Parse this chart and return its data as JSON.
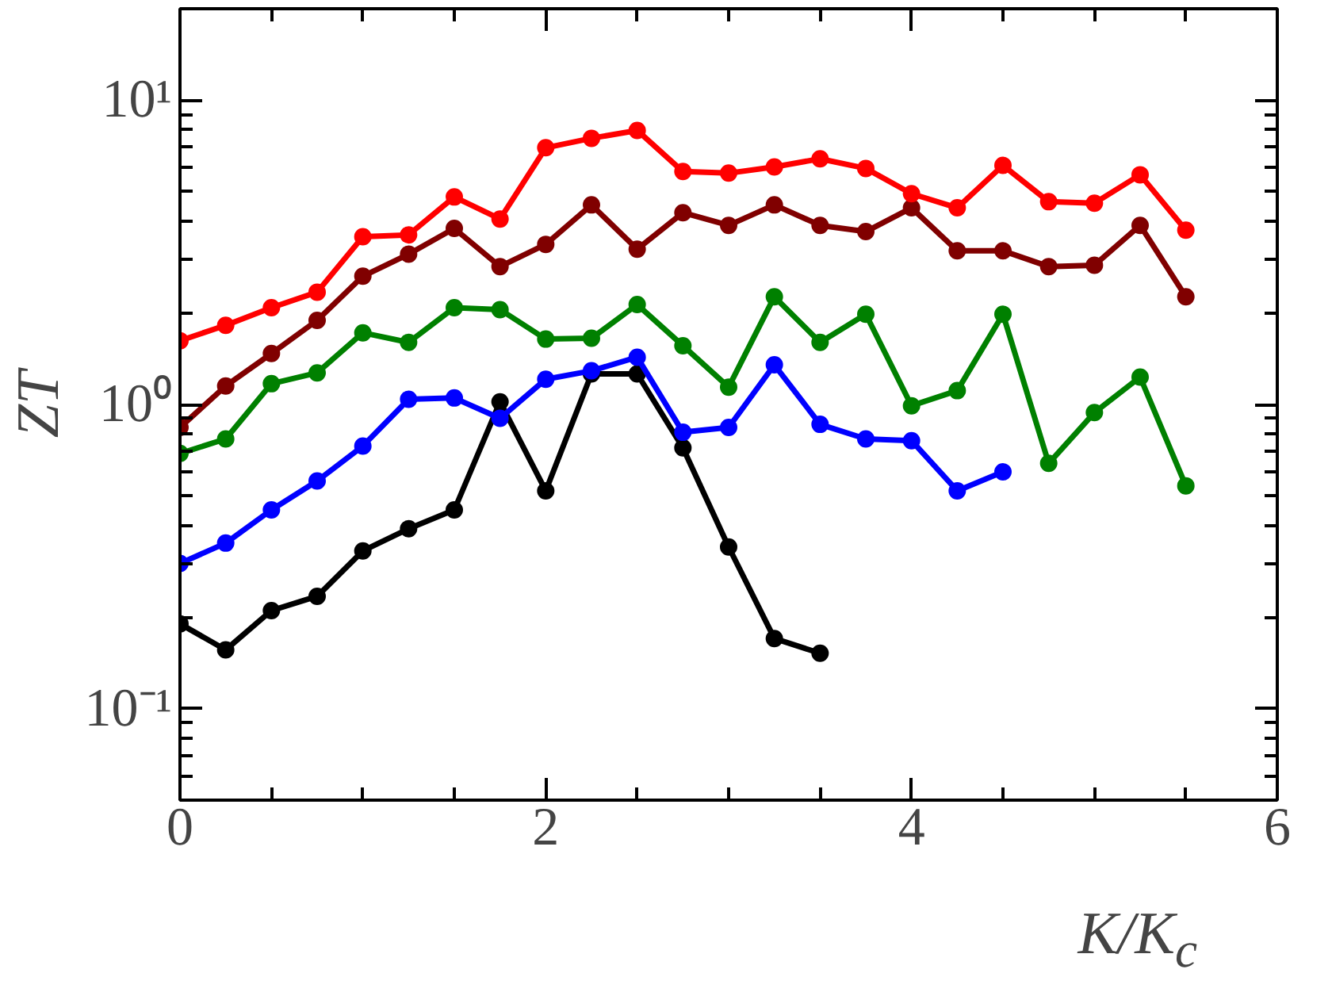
{
  "chart_data": {
    "type": "line",
    "xlabel": "K/K$_{c}$",
    "ylabel": "ZT",
    "log": "y",
    "grid": false,
    "marker": "circle",
    "line_style": "solid",
    "xlim": [
      0,
      6
    ],
    "xticks": [
      0,
      2,
      4,
      6
    ],
    "ylim": [
      0.05,
      20
    ],
    "yticks": [
      {
        "value": 0.1,
        "label": "10⁻¹"
      },
      {
        "value": 1,
        "label": "10⁰"
      },
      {
        "value": 10,
        "label": "10¹"
      }
    ],
    "x": [
      0,
      0.25,
      0.5,
      0.75,
      1,
      1.25,
      1.5,
      1.75,
      2,
      2.25,
      2.5,
      2.75,
      3,
      3.25,
      3.5,
      3.75,
      4,
      4.25,
      4.5,
      4.75,
      5,
      5.25,
      5.5
    ],
    "series": [
      {
        "color": "#ff0000",
        "values": [
          1.62,
          1.82,
          2.08,
          2.34,
          3.56,
          3.61,
          4.81,
          4.07,
          6.98,
          7.5,
          7.96,
          5.83,
          5.76,
          6.04,
          6.42,
          5.97,
          4.93,
          4.43,
          6.11,
          4.64,
          4.59,
          5.69,
          3.74
        ]
      },
      {
        "color": "#800000",
        "values": [
          0.84,
          1.15,
          1.47,
          1.89,
          2.64,
          3.12,
          3.79,
          2.84,
          3.36,
          4.53,
          3.24,
          4.27,
          3.88,
          4.53,
          3.88,
          3.7,
          4.43,
          3.2,
          3.2,
          2.84,
          2.87,
          3.88,
          2.26
        ]
      },
      {
        "color": "#008000",
        "values": [
          0.69,
          0.77,
          1.17,
          1.27,
          1.72,
          1.6,
          2.08,
          2.05,
          1.64,
          1.65,
          2.13,
          1.56,
          1.14,
          2.26,
          1.6,
          1.98,
          0.99,
          1.11,
          1.98,
          0.64,
          0.94,
          1.23,
          0.54
        ]
      },
      {
        "color": "#0000ff",
        "values": [
          0.3,
          0.35,
          0.45,
          0.56,
          0.73,
          1.04,
          1.05,
          0.9,
          1.21,
          1.29,
          1.43,
          0.81,
          0.84,
          1.35,
          0.86,
          0.77,
          0.76,
          0.52,
          0.6,
          null,
          null,
          null,
          null
        ]
      },
      {
        "color": "#000000",
        "values": [
          0.19,
          0.156,
          0.21,
          0.234,
          0.33,
          0.39,
          0.45,
          1.02,
          0.52,
          1.26,
          1.26,
          0.72,
          0.34,
          0.17,
          0.152,
          null,
          null,
          null,
          null,
          null,
          null,
          null,
          null
        ]
      }
    ]
  }
}
